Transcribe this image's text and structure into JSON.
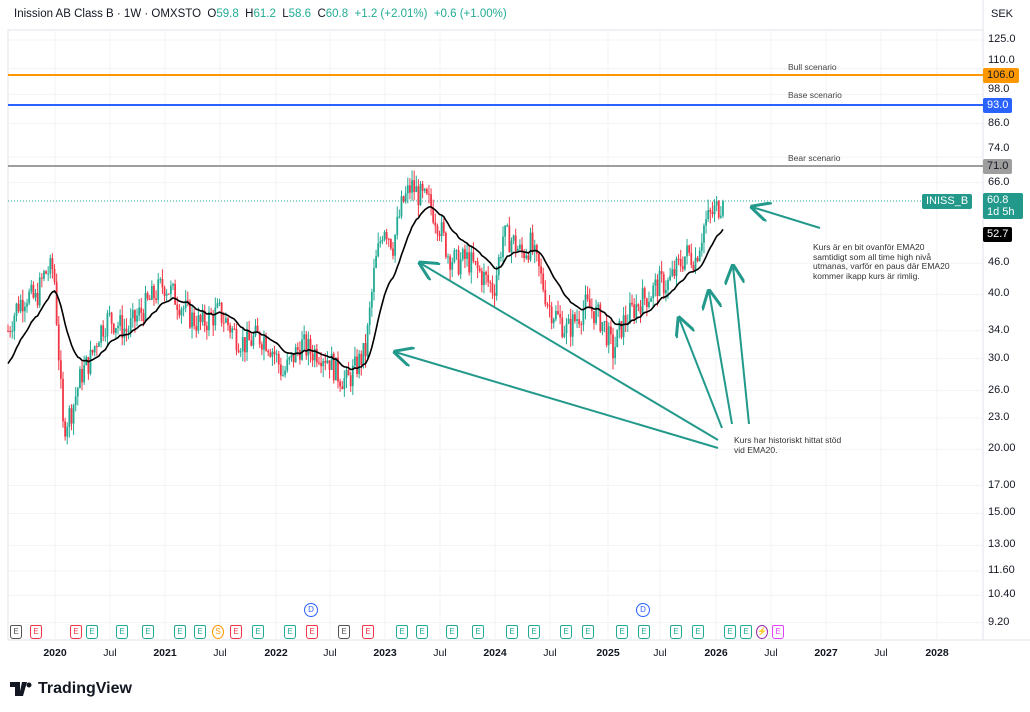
{
  "header": {
    "title": "Inission AB Class B · 1W · OMXSTO",
    "o_label": "O",
    "o": "59.8",
    "h_label": "H",
    "h": "61.2",
    "l_label": "L",
    "l": "58.6",
    "c_label": "C",
    "c": "60.8",
    "change": "+1.2 (+2.01%)",
    "change2": "+0.6 (+1.00%)",
    "currency": "SEK"
  },
  "price_axis": [
    "125.0",
    "110.0",
    "98.0",
    "86.0",
    "74.0",
    "66.0",
    "46.0",
    "40.0",
    "34.0",
    "30.0",
    "26.0",
    "23.0",
    "20.00",
    "17.00",
    "15.00",
    "13.00",
    "11.60",
    "10.40",
    "9.20"
  ],
  "price_tags": {
    "bull": "106.0",
    "base": "93.0",
    "bear": "71.0",
    "last": "60.8",
    "countdown": "1d 5h",
    "ema": "52.7",
    "symbol": "INISS_B"
  },
  "scenarios": {
    "bull": "Bull scenario",
    "base": "Base scenario",
    "bear": "Bear scenario"
  },
  "colors": {
    "up": "#22ab94",
    "down": "#f23645",
    "bull": "#ff9800",
    "base": "#2962ff",
    "bear": "#9e9e9e",
    "ema": "#000000",
    "arrow": "#22998b"
  },
  "notes": {
    "right": "Kurs är en bit ovanför EMA20\nsamtidigt som all time high nivå\nutmanas, varför en paus där EMA20\nkommer ikapp kurs är rimlig.",
    "support": "Kurs har historiskt hittat stöd\nvid EMA20."
  },
  "time_axis": [
    {
      "t": "2020",
      "b": true
    },
    {
      "t": "Jul"
    },
    {
      "t": "2021",
      "b": true
    },
    {
      "t": "Jul"
    },
    {
      "t": "2022",
      "b": true
    },
    {
      "t": "Jul"
    },
    {
      "t": "2023",
      "b": true
    },
    {
      "t": "Jul"
    },
    {
      "t": "2024",
      "b": true
    },
    {
      "t": "Jul"
    },
    {
      "t": "2025",
      "b": true
    },
    {
      "t": "Jul"
    },
    {
      "t": "2026",
      "b": true
    },
    {
      "t": "Jul"
    },
    {
      "t": "2027",
      "b": true
    },
    {
      "t": "Jul"
    },
    {
      "t": "2028",
      "b": true
    }
  ],
  "events": [
    {
      "k": "g",
      "t": "E"
    },
    {
      "k": "r",
      "t": "E"
    },
    {
      "k": "r",
      "t": "E"
    },
    {
      "k": "",
      "t": "E"
    },
    {
      "k": "",
      "t": "E"
    },
    {
      "k": "",
      "t": "E"
    },
    {
      "k": "",
      "t": "E"
    },
    {
      "k": "",
      "t": "E"
    },
    {
      "k": "o",
      "t": "S"
    },
    {
      "k": "r",
      "t": "E"
    },
    {
      "k": "",
      "t": "E"
    },
    {
      "k": "",
      "t": "E"
    },
    {
      "k": "r",
      "t": "E"
    },
    {
      "k": "g",
      "t": "E"
    },
    {
      "k": "r",
      "t": "E"
    },
    {
      "k": "",
      "t": "E"
    },
    {
      "k": "",
      "t": "E"
    },
    {
      "k": "",
      "t": "E"
    },
    {
      "k": "",
      "t": "E"
    },
    {
      "k": "",
      "t": "E"
    },
    {
      "k": "",
      "t": "E"
    },
    {
      "k": "",
      "t": "E"
    },
    {
      "k": "",
      "t": "E"
    },
    {
      "k": "",
      "t": "E"
    },
    {
      "k": "",
      "t": "E"
    },
    {
      "k": "",
      "t": "E"
    },
    {
      "k": "",
      "t": "E"
    },
    {
      "k": "",
      "t": "E"
    },
    {
      "k": "",
      "t": "E"
    },
    {
      "k": "p",
      "t": "⚡"
    },
    {
      "k": "m",
      "t": "E"
    }
  ],
  "dividends": [
    "D",
    "D"
  ],
  "logo": "TradingView",
  "chart_data": {
    "type": "candlestick",
    "scale": "log",
    "interval": "1W",
    "start": "2019-09",
    "ylim": [
      8.8,
      140
    ],
    "monthly_close": [
      34,
      38,
      40,
      39,
      44,
      45,
      22,
      24,
      28,
      30,
      34,
      36,
      35,
      34,
      36,
      38,
      40,
      42,
      40,
      38,
      36,
      35,
      36,
      37,
      35,
      33,
      32,
      33,
      33,
      31,
      28,
      30,
      32,
      31,
      31,
      30,
      28,
      27,
      29,
      31,
      45,
      55,
      50,
      60,
      65,
      62,
      60,
      55,
      48,
      46,
      47,
      45,
      43,
      41,
      52,
      51,
      48,
      50,
      44,
      38,
      36,
      34,
      36,
      38,
      37,
      35,
      31,
      35,
      37,
      39,
      40,
      42,
      42,
      45,
      48,
      47,
      55,
      58,
      60.8
    ],
    "ema_period": 20,
    "levels": {
      "bull": 106,
      "base": 93,
      "bear": 71
    }
  }
}
